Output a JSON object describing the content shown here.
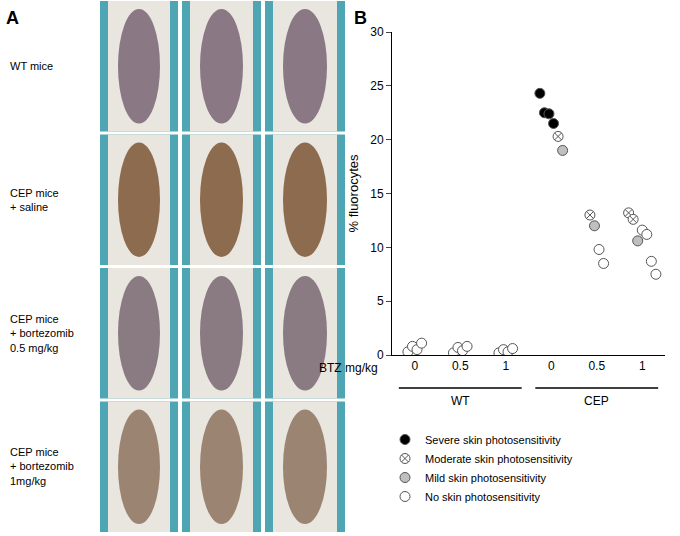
{
  "panel_a": {
    "label": "A",
    "rows": [
      {
        "lines": [
          "WT mice"
        ]
      },
      {
        "lines": [
          "CEP mice",
          "+ saline"
        ]
      },
      {
        "lines": [
          "CEP mice",
          "+ bortezomib",
          "0.5 mg/kg"
        ]
      },
      {
        "lines": [
          "CEP mice",
          "+ bortezomib",
          "1mg/kg"
        ]
      }
    ]
  },
  "chart_data": {
    "type": "scatter",
    "panel_label": "B",
    "y_label": "% fluorocytes",
    "x_label": "BTZ mg/kg",
    "categories": [
      "0",
      "0.5",
      "1",
      "0",
      "0.5",
      "1"
    ],
    "groups": [
      {
        "label": "WT",
        "from": 0,
        "to": 2
      },
      {
        "label": "CEP",
        "from": 3,
        "to": 5
      }
    ],
    "ylim": [
      0,
      30
    ],
    "yticks": [
      0,
      5,
      10,
      15,
      20,
      25,
      30
    ],
    "grid": false,
    "legend": "bottom",
    "series": [
      {
        "name": "Severe skin photosensitivity",
        "color": "#000000",
        "marker": "circle",
        "x": [
          3,
          3,
          3,
          3
        ],
        "values": [
          24.3,
          22.5,
          22.4,
          21.5
        ]
      },
      {
        "name": "Moderate skin photosensitivity",
        "color": "#ffffff",
        "marker": "hatched",
        "x": [
          3,
          4,
          5,
          5
        ],
        "values": [
          20.3,
          13.0,
          13.2,
          12.6
        ]
      },
      {
        "name": "Mild skin photosensitivity",
        "color": "#bfbfbf",
        "marker": "circle",
        "x": [
          3,
          4,
          5
        ],
        "values": [
          19.0,
          12.0,
          10.6
        ]
      },
      {
        "name": "No skin photosensitivity",
        "color": "#ffffff",
        "marker": "circle",
        "x": [
          0,
          0,
          0,
          0,
          1,
          1,
          1,
          1,
          2,
          2,
          2,
          2,
          4,
          4,
          5,
          5,
          5,
          5
        ],
        "values": [
          0.3,
          0.8,
          0.5,
          1.1,
          0.2,
          0.7,
          0.4,
          0.8,
          0.2,
          0.5,
          0.3,
          0.6,
          9.8,
          8.5,
          11.6,
          11.2,
          8.7,
          7.5
        ]
      }
    ]
  }
}
